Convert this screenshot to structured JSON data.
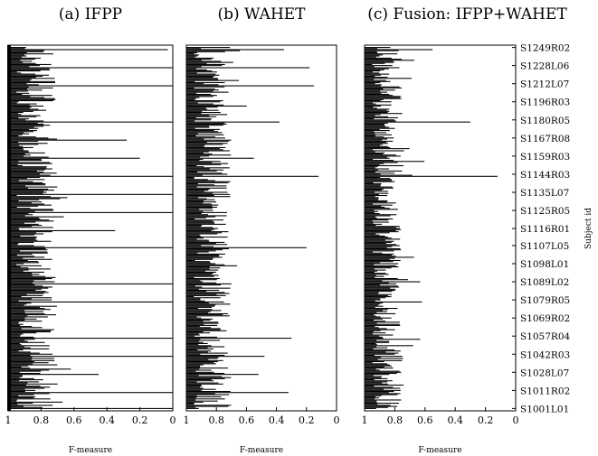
{
  "chart_data": {
    "type": "bar",
    "orientation": "horizontal",
    "subjects_y_label": "Subject id",
    "subject_labels": [
      "S1249R02",
      "S1228L06",
      "S1212L07",
      "S1196R03",
      "S1180R05",
      "S1167R08",
      "S1159R03",
      "S1144R03",
      "S1135L07",
      "S1125R05",
      "S1116R01",
      "S1107L05",
      "S1098L01",
      "S1089L02",
      "S1079R05",
      "S1069R02",
      "S1057R04",
      "S1042R03",
      "S1028L07",
      "S1011R02",
      "S1001L01"
    ],
    "x_axis_reversed": true,
    "xlim": [
      0,
      1
    ],
    "x_tick_labels": [
      "1",
      "0.8",
      "0.6",
      "0.4",
      "0.2",
      "0"
    ],
    "panels": [
      {
        "title": "(a) IFPP",
        "xlabel": "F-measure",
        "typical_range": [
          0.7,
          0.95
        ],
        "outliers": [
          {
            "subject": "S1249R02",
            "value": 0.03
          },
          {
            "subject": "S1228L06",
            "value": 0.0
          },
          {
            "subject": "S1212L07",
            "value": 0.0
          },
          {
            "subject": "S1180R05",
            "value": 0.0
          },
          {
            "subject": "S1167R08",
            "value": 0.28
          },
          {
            "subject": "S1159R03",
            "value": 0.2
          },
          {
            "subject": "S1144R03",
            "value": 0.0
          },
          {
            "subject": "S1135L07",
            "value": 0.0
          },
          {
            "subject": "S1125R05",
            "value": 0.0
          },
          {
            "subject": "S1116R01",
            "value": 0.35
          },
          {
            "subject": "S1107L05",
            "value": 0.0
          },
          {
            "subject": "S1089L02",
            "value": 0.0
          },
          {
            "subject": "S1079R05",
            "value": 0.0
          },
          {
            "subject": "S1057R04",
            "value": 0.0
          },
          {
            "subject": "S1042R03",
            "value": 0.0
          },
          {
            "subject": "S1028L07",
            "value": 0.45
          },
          {
            "subject": "S1011R02",
            "value": 0.0
          },
          {
            "subject": "S1001L01",
            "value": 0.0
          }
        ]
      },
      {
        "title": "(b) WAHET",
        "xlabel": "F-measure",
        "typical_range": [
          0.7,
          0.95
        ],
        "outliers": [
          {
            "subject": "S1249R02",
            "value": 0.35
          },
          {
            "subject": "S1228L06",
            "value": 0.18
          },
          {
            "subject": "S1212L07",
            "value": 0.15
          },
          {
            "subject": "S1180R05",
            "value": 0.38
          },
          {
            "subject": "S1159R03",
            "value": 0.55
          },
          {
            "subject": "S1144R03",
            "value": 0.12
          },
          {
            "subject": "S1107L05",
            "value": 0.2
          },
          {
            "subject": "S1089L02",
            "value": 0.7
          },
          {
            "subject": "S1057R04",
            "value": 0.3
          },
          {
            "subject": "S1042R03",
            "value": 0.48
          },
          {
            "subject": "S1028L07",
            "value": 0.52
          },
          {
            "subject": "S1011R02",
            "value": 0.32
          }
        ]
      },
      {
        "title": "(c) Fusion: IFPP+WAHET",
        "xlabel": "F-measure",
        "typical_range": [
          0.75,
          0.95
        ],
        "outliers": [
          {
            "subject": "S1249R02",
            "value": 0.55
          },
          {
            "subject": "S1180R05",
            "value": 0.3
          },
          {
            "subject": "S1144R03",
            "value": 0.12
          },
          {
            "subject": "S1079R05",
            "value": 0.62
          },
          {
            "subject": "S1042R03",
            "value": 0.75
          }
        ]
      }
    ]
  }
}
